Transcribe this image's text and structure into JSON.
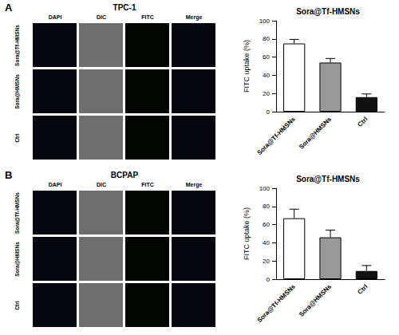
{
  "figure": {
    "panels": [
      {
        "letter": "A",
        "cell_line": "TPC-1",
        "columns": [
          "DAPI",
          "DIC",
          "FITC",
          "Merge"
        ],
        "rows": [
          "Sora@Tf-HMSNs",
          "Sora@HMSNs",
          "Ctrl"
        ]
      },
      {
        "letter": "B",
        "cell_line": "BCPAP",
        "columns": [
          "DAPI",
          "DIC",
          "FITC",
          "Merge"
        ],
        "rows": [
          "Sora@Tf-HMSNs",
          "Sora@HMSNs",
          "Ctrl"
        ]
      }
    ]
  },
  "chart_data": [
    {
      "type": "bar",
      "title": "Sora@Tf-HMSNs",
      "ylabel": "FITC uptake (%)",
      "categories": [
        "Sora@Tf-HMSNs",
        "Sora@HMSNs",
        "Ctrl"
      ],
      "values": [
        75,
        54,
        16
      ],
      "errors": [
        4.5,
        4.5,
        3.5
      ],
      "colors": [
        "#ffffff",
        "#999999",
        "#111111"
      ],
      "ylim": [
        0,
        100
      ],
      "yticks": [
        0,
        20,
        40,
        60,
        80,
        100
      ],
      "grid": false
    },
    {
      "type": "bar",
      "title": "Sora@Tf-HMSNs",
      "ylabel": "FITC uptake (%)",
      "categories": [
        "Sora@Tf-HMSNs",
        "Sora@HMSNs",
        "Ctrl"
      ],
      "values": [
        67,
        46,
        9
      ],
      "errors": [
        10,
        8,
        6
      ],
      "colors": [
        "#ffffff",
        "#999999",
        "#111111"
      ],
      "ylim": [
        0,
        100
      ],
      "yticks": [
        0,
        20,
        40,
        60,
        80,
        100
      ],
      "grid": false
    }
  ]
}
